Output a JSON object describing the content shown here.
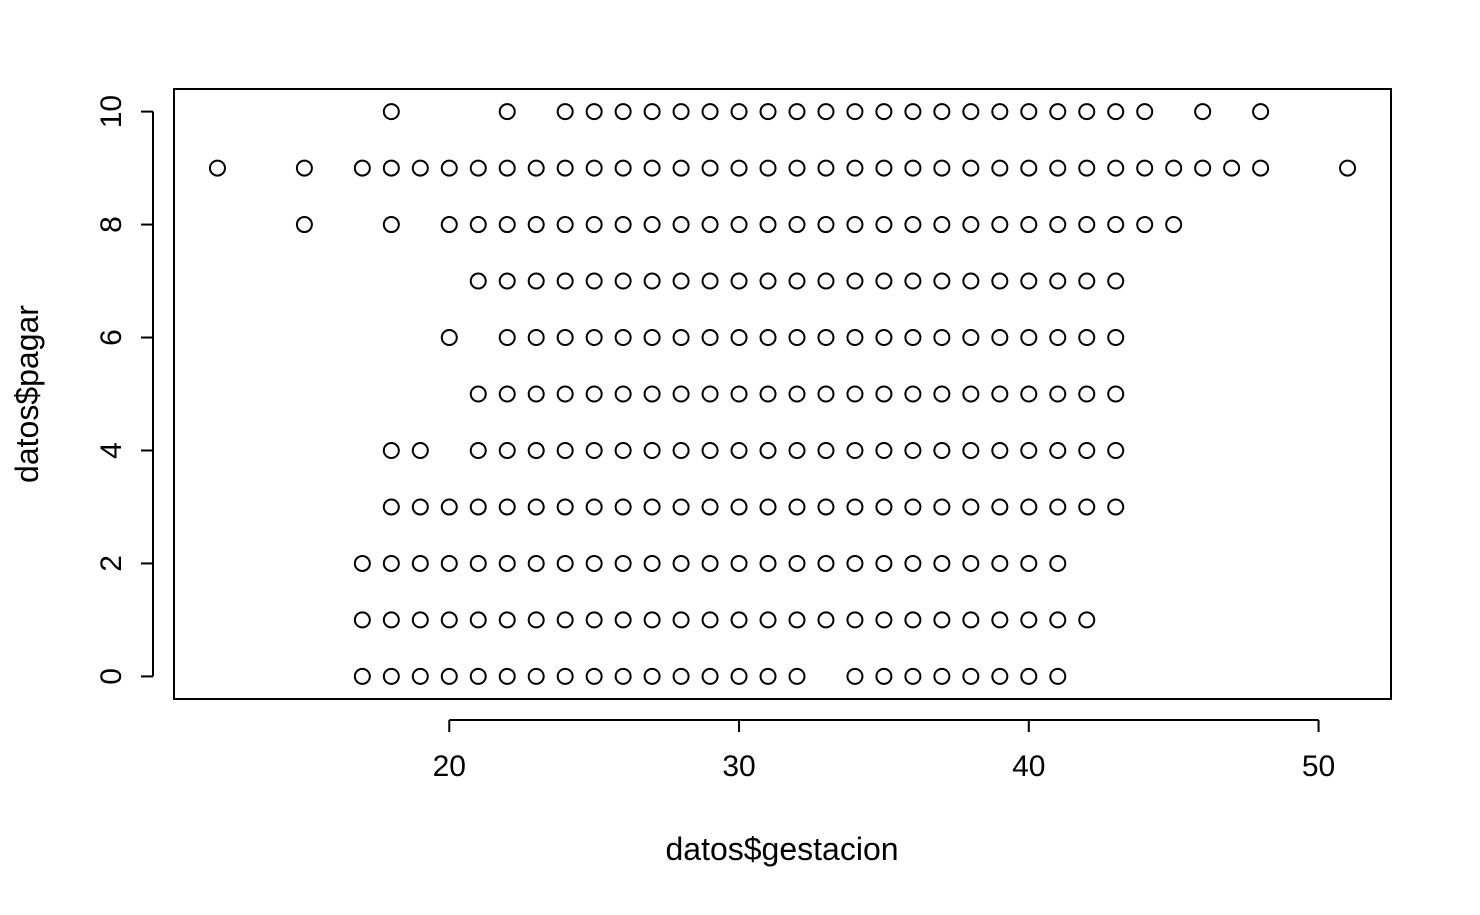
{
  "chart_data": {
    "type": "scatter",
    "title": "",
    "xlabel": "datos$gestacion",
    "ylabel": "datos$pagar",
    "xlim": [
      10.5,
      52.5
    ],
    "ylim": [
      -0.4,
      10.4
    ],
    "x_ticks": [
      20,
      30,
      40,
      50
    ],
    "y_ticks": [
      0,
      2,
      4,
      6,
      8,
      10
    ],
    "x_tick_labels": [
      "20",
      "30",
      "40",
      "50"
    ],
    "y_tick_labels": [
      "0",
      "2",
      "4",
      "6",
      "8",
      "10"
    ],
    "marker": "open-circle",
    "color": "#000000",
    "grid": false,
    "points_by_y": [
      {
        "y": 10,
        "x": [
          18,
          22,
          24,
          25,
          26,
          27,
          28,
          29,
          30,
          31,
          32,
          33,
          34,
          35,
          36,
          37,
          38,
          39,
          40,
          41,
          42,
          43,
          44,
          46,
          48
        ]
      },
      {
        "y": 9,
        "x": [
          12,
          15,
          17,
          18,
          19,
          20,
          21,
          22,
          23,
          24,
          25,
          26,
          27,
          28,
          29,
          30,
          31,
          32,
          33,
          34,
          35,
          36,
          37,
          38,
          39,
          40,
          41,
          42,
          43,
          44,
          45,
          46,
          47,
          48,
          51
        ]
      },
      {
        "y": 8,
        "x": [
          15,
          18,
          20,
          21,
          22,
          23,
          24,
          25,
          26,
          27,
          28,
          29,
          30,
          31,
          32,
          33,
          34,
          35,
          36,
          37,
          38,
          39,
          40,
          41,
          42,
          43,
          44,
          45
        ]
      },
      {
        "y": 7,
        "x": [
          21,
          22,
          23,
          24,
          25,
          26,
          27,
          28,
          29,
          30,
          31,
          32,
          33,
          34,
          35,
          36,
          37,
          38,
          39,
          40,
          41,
          42,
          43
        ]
      },
      {
        "y": 6,
        "x": [
          20,
          22,
          23,
          24,
          25,
          26,
          27,
          28,
          29,
          30,
          31,
          32,
          33,
          34,
          35,
          36,
          37,
          38,
          39,
          40,
          41,
          42,
          43
        ]
      },
      {
        "y": 5,
        "x": [
          21,
          22,
          23,
          24,
          25,
          26,
          27,
          28,
          29,
          30,
          31,
          32,
          33,
          34,
          35,
          36,
          37,
          38,
          39,
          40,
          41,
          42,
          43
        ]
      },
      {
        "y": 4,
        "x": [
          18,
          19,
          21,
          22,
          23,
          24,
          25,
          26,
          27,
          28,
          29,
          30,
          31,
          32,
          33,
          34,
          35,
          36,
          37,
          38,
          39,
          40,
          41,
          42,
          43
        ]
      },
      {
        "y": 3,
        "x": [
          18,
          19,
          20,
          21,
          22,
          23,
          24,
          25,
          26,
          27,
          28,
          29,
          30,
          31,
          32,
          33,
          34,
          35,
          36,
          37,
          38,
          39,
          40,
          41,
          42,
          43
        ]
      },
      {
        "y": 2,
        "x": [
          17,
          18,
          19,
          20,
          21,
          22,
          23,
          24,
          25,
          26,
          27,
          28,
          29,
          30,
          31,
          32,
          33,
          34,
          35,
          36,
          37,
          38,
          39,
          40,
          41
        ]
      },
      {
        "y": 1,
        "x": [
          17,
          18,
          19,
          20,
          21,
          22,
          23,
          24,
          25,
          26,
          27,
          28,
          29,
          30,
          31,
          32,
          33,
          34,
          35,
          36,
          37,
          38,
          39,
          40,
          41,
          42
        ]
      },
      {
        "y": 0,
        "x": [
          17,
          18,
          19,
          20,
          21,
          22,
          23,
          24,
          25,
          26,
          27,
          28,
          29,
          30,
          31,
          32,
          34,
          35,
          36,
          37,
          38,
          39,
          40,
          41
        ]
      }
    ]
  }
}
